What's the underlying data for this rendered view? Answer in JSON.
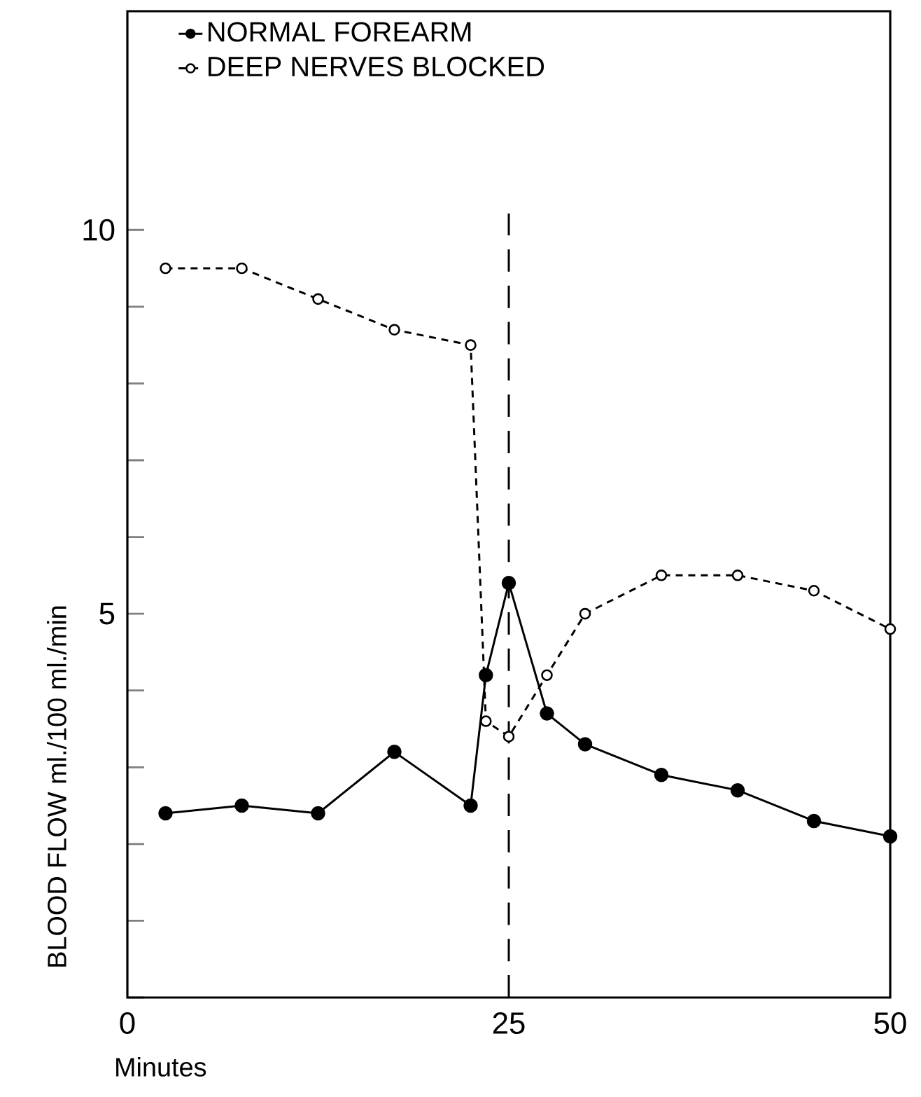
{
  "chart_data": {
    "type": "line",
    "xlabel": "Minutes",
    "ylabel": "BLOOD FLOW      ml./100 ml./min",
    "xlim": [
      0,
      50
    ],
    "ylim": [
      0,
      12.85
    ],
    "xticks": [
      0,
      25,
      50
    ],
    "yticks": [
      {
        "value": 0,
        "label": null
      },
      {
        "value": 1,
        "label": null
      },
      {
        "value": 2,
        "label": null
      },
      {
        "value": 3,
        "label": null
      },
      {
        "value": 4,
        "label": null
      },
      5,
      {
        "value": 6,
        "label": null
      },
      {
        "value": 7,
        "label": null
      },
      {
        "value": 8,
        "label": null
      },
      {
        "value": 9,
        "label": null
      },
      10
    ],
    "marker": "circle",
    "legend": "top left",
    "grid": false,
    "ref_lines": [
      {
        "axis": "x",
        "value": 25,
        "line_style": "dashed",
        "color": "#000000"
      }
    ],
    "series": [
      {
        "name": "NORMAL FOREARM",
        "color": "#000000",
        "line_style": "solid",
        "x": [
          2.5,
          7.5,
          12.5,
          17.5,
          22.5,
          23.5,
          25,
          27.5,
          30,
          35,
          40,
          45,
          50
        ],
        "values": [
          2.4,
          2.5,
          2.4,
          3.2,
          2.5,
          4.2,
          5.4,
          3.7,
          3.3,
          2.9,
          2.7,
          2.3,
          2.1
        ]
      },
      {
        "name": "DEEP NERVES BLOCKED",
        "color": "#000000",
        "line_style": "dashed",
        "x": [
          2.5,
          7.5,
          12.5,
          17.5,
          22.5,
          23.5,
          25,
          27.5,
          30,
          35,
          40,
          45,
          50
        ],
        "values": [
          9.5,
          9.5,
          9.1,
          8.7,
          8.5,
          3.6,
          3.4,
          4.2,
          5.0,
          5.5,
          5.5,
          5.3,
          4.8
        ]
      }
    ]
  }
}
